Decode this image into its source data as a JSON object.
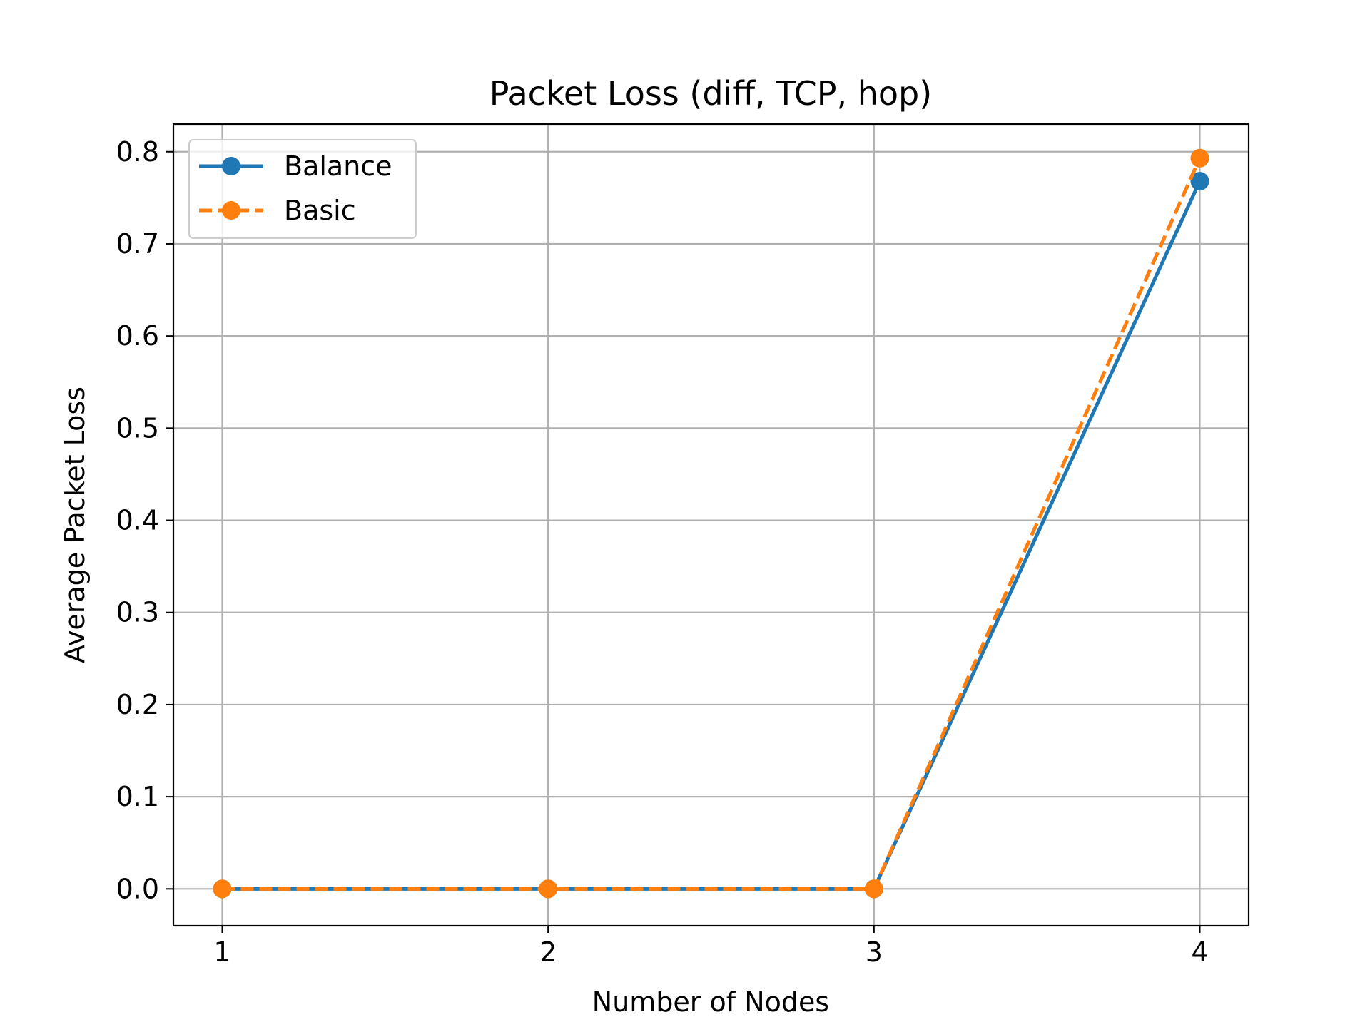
{
  "chart_data": {
    "type": "line",
    "title": "Packet Loss (diff, TCP, hop)",
    "xlabel": "Number of Nodes",
    "ylabel": "Average Packet Loss",
    "x": [
      1,
      2,
      3,
      4
    ],
    "xticks": [
      "1",
      "2",
      "3",
      "4"
    ],
    "yticks": [
      "0.0",
      "0.1",
      "0.2",
      "0.3",
      "0.4",
      "0.5",
      "0.6",
      "0.7",
      "0.8"
    ],
    "xlim": [
      0.85,
      4.15
    ],
    "ylim": [
      -0.04,
      0.83
    ],
    "grid": true,
    "legend_position": "upper-left",
    "series": [
      {
        "name": "Balance",
        "values": [
          0.0,
          0.0,
          0.0,
          0.768
        ],
        "color": "#1f77b4",
        "line_style": "solid",
        "marker": "circle"
      },
      {
        "name": "Basic",
        "values": [
          0.0,
          0.0,
          0.0,
          0.793
        ],
        "color": "#ff7f0e",
        "line_style": "dashed",
        "marker": "circle"
      }
    ]
  }
}
